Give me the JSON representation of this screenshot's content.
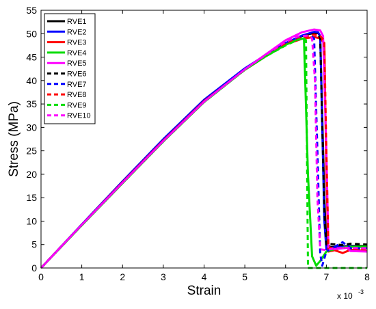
{
  "chart_data": {
    "type": "line",
    "title": "",
    "xlabel": "Strain",
    "ylabel": "Stress (MPa)",
    "x_multiplier_label": "x 10",
    "x_multiplier_exp": "-3",
    "xlim": [
      0,
      8
    ],
    "ylim": [
      0,
      55
    ],
    "xticks": [
      "0",
      "1",
      "2",
      "3",
      "4",
      "5",
      "6",
      "7",
      "8"
    ],
    "yticks": [
      "0",
      "5",
      "10",
      "15",
      "20",
      "25",
      "30",
      "35",
      "40",
      "45",
      "50",
      "55"
    ],
    "grid": false,
    "legend_position": "top-left",
    "series": [
      {
        "name": "RVE1",
        "color": "#000000",
        "dash": "solid",
        "x": [
          0,
          1,
          2,
          3,
          4,
          5,
          5.5,
          6,
          6.4,
          6.7,
          6.8,
          6.85,
          6.95,
          7.0,
          7.1,
          7.4,
          7.6,
          8.0
        ],
        "y": [
          0,
          9.2,
          18.3,
          27.2,
          35.6,
          42.4,
          45.3,
          48.0,
          49.5,
          50.2,
          50.1,
          49.5,
          15,
          5,
          4.5,
          4.6,
          4.7,
          4.7
        ]
      },
      {
        "name": "RVE2",
        "color": "#0000ff",
        "dash": "solid",
        "x": [
          0,
          1,
          2,
          3,
          4,
          5,
          5.5,
          6,
          6.4,
          6.7,
          6.8,
          6.85,
          6.95,
          7.0,
          7.1,
          7.4,
          7.6,
          8.0
        ],
        "y": [
          0,
          9.3,
          18.5,
          27.5,
          35.9,
          42.6,
          45.4,
          48.0,
          49.6,
          50.4,
          50.3,
          49.5,
          10,
          4,
          4.3,
          4.5,
          4.6,
          4.5
        ]
      },
      {
        "name": "RVE3",
        "color": "#ff0000",
        "dash": "solid",
        "x": [
          0,
          1,
          2,
          3,
          4,
          5,
          5.5,
          6,
          6.4,
          6.7,
          6.85,
          6.95,
          7.0,
          7.05,
          7.2,
          7.4,
          7.6,
          8.0
        ],
        "y": [
          0,
          9.2,
          18.3,
          27.2,
          35.6,
          42.3,
          45.1,
          47.7,
          48.9,
          49.3,
          49.0,
          48.0,
          20,
          3.5,
          3.8,
          3.2,
          3.9,
          3.6
        ]
      },
      {
        "name": "RVE4",
        "color": "#00dd00",
        "dash": "solid",
        "x": [
          0,
          1,
          2,
          3,
          4,
          5,
          5.5,
          6,
          6.3,
          6.45,
          6.55,
          6.65,
          6.75,
          6.85,
          7.0,
          7.2,
          7.5,
          8.0
        ],
        "y": [
          0,
          9.1,
          18.1,
          27.0,
          35.4,
          42.3,
          45.1,
          47.6,
          48.8,
          49.0,
          20,
          2.5,
          0.5,
          1.5,
          3.5,
          4.0,
          4.5,
          4.6
        ]
      },
      {
        "name": "RVE5",
        "color": "#ff00ff",
        "dash": "solid",
        "x": [
          0,
          1,
          2,
          3,
          4,
          5,
          5.5,
          6,
          6.4,
          6.7,
          6.85,
          6.92,
          7.0,
          7.05,
          7.2,
          7.5,
          7.6,
          8.0
        ],
        "y": [
          0,
          9.2,
          18.2,
          27.1,
          35.5,
          42.4,
          45.5,
          48.6,
          50.3,
          50.9,
          50.7,
          49.5,
          25,
          4.5,
          4.0,
          4.3,
          3.6,
          3.5
        ]
      },
      {
        "name": "RVE6",
        "color": "#000000",
        "dash": "dashed",
        "x": [
          0,
          1,
          2,
          3,
          4,
          5,
          5.5,
          6,
          6.4,
          6.7,
          6.8,
          6.85,
          6.95,
          7.0,
          7.1,
          7.4,
          7.6,
          8.0
        ],
        "y": [
          0,
          9.2,
          18.3,
          27.2,
          35.6,
          42.4,
          45.3,
          47.9,
          49.4,
          50.0,
          49.8,
          49.0,
          12,
          5,
          5.1,
          4.9,
          5.2,
          5.0
        ]
      },
      {
        "name": "RVE7",
        "color": "#0000ff",
        "dash": "dashed",
        "x": [
          0,
          1,
          2,
          3,
          4,
          5,
          5.5,
          6,
          6.4,
          6.6,
          6.7,
          6.78,
          6.85,
          6.9,
          7.0,
          7.4,
          7.6,
          8.0
        ],
        "y": [
          0,
          9.2,
          18.3,
          27.2,
          35.6,
          42.4,
          45.3,
          47.9,
          49.3,
          49.6,
          49.0,
          25,
          3,
          0.5,
          3.5,
          5.5,
          4.2,
          4.2
        ]
      },
      {
        "name": "RVE8",
        "color": "#ff0000",
        "dash": "dashed",
        "x": [
          0,
          1,
          2,
          3,
          4,
          5,
          5.5,
          6,
          6.4,
          6.7,
          6.85,
          6.95,
          7.0,
          7.05,
          7.2,
          7.4,
          7.6,
          8.0
        ],
        "y": [
          0,
          9.2,
          18.3,
          27.2,
          35.6,
          42.3,
          45.2,
          47.8,
          49.2,
          49.8,
          49.5,
          48.5,
          25,
          4.5,
          4.0,
          4.4,
          4.2,
          4.1
        ]
      },
      {
        "name": "RVE9",
        "color": "#00dd00",
        "dash": "dashed",
        "x": [
          0,
          1,
          2,
          3,
          4,
          5,
          5.5,
          6,
          6.3,
          6.45,
          6.5,
          6.55,
          6.6,
          6.7,
          6.9,
          7.2,
          7.5,
          8.0
        ],
        "y": [
          0,
          9.1,
          18.1,
          27.0,
          35.4,
          42.3,
          45.1,
          47.5,
          48.7,
          49.0,
          48.6,
          0,
          0,
          0,
          0,
          0,
          0,
          0
        ]
      },
      {
        "name": "RVE10",
        "color": "#ff00ff",
        "dash": "dashed",
        "x": [
          0,
          1,
          2,
          3,
          4,
          5,
          5.5,
          6,
          6.3,
          6.55,
          6.65,
          6.72,
          6.78,
          6.85,
          7.0,
          7.2,
          7.5,
          8.0
        ],
        "y": [
          0,
          9.2,
          18.2,
          27.1,
          35.5,
          42.4,
          45.4,
          48.3,
          49.4,
          49.6,
          49.0,
          40,
          15,
          4,
          3.8,
          4.2,
          4.3,
          4.2
        ]
      }
    ]
  }
}
